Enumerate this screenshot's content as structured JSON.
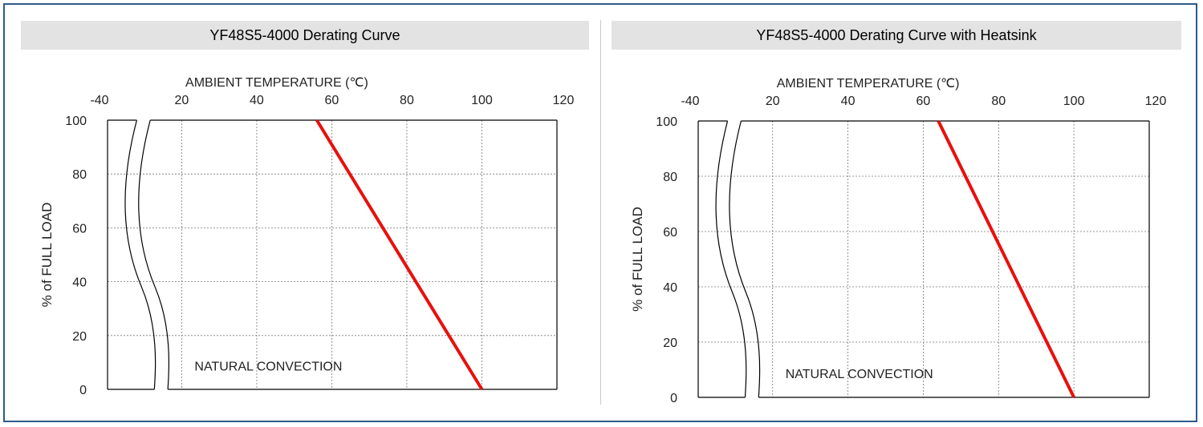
{
  "chart_data": [
    {
      "type": "line",
      "title": "YF48S5-4000 Derating Curve",
      "xlabel": "AMBIENT TEMPERATURE (℃)",
      "ylabel": "% of FULL LOAD",
      "x_ticks": [
        "-40",
        "20",
        "40",
        "60",
        "80",
        "100",
        "120"
      ],
      "y_ticks": [
        "100",
        "80",
        "60",
        "40",
        "20",
        "0"
      ],
      "xlim": [
        0,
        120
      ],
      "ylim": [
        0,
        100
      ],
      "axis_break": "between -40 and 20",
      "grid": true,
      "annotation": "NATURAL CONVECTION",
      "line_color": "#e8100d",
      "series": [
        {
          "x": [
            56,
            100
          ],
          "y": [
            100,
            0
          ]
        }
      ]
    },
    {
      "type": "line",
      "title": "YF48S5-4000 Derating Curve with Heatsink",
      "xlabel": "AMBIENT TEMPERATURE (℃)",
      "ylabel": "% of FULL LOAD",
      "x_ticks": [
        "-40",
        "20",
        "40",
        "60",
        "80",
        "100",
        "120"
      ],
      "y_ticks": [
        "100",
        "80",
        "60",
        "40",
        "20",
        "0"
      ],
      "xlim": [
        0,
        120
      ],
      "ylim": [
        0,
        100
      ],
      "axis_break": "between -40 and 20",
      "grid": true,
      "annotation": "NATURAL CONVECTION",
      "line_color": "#e8100d",
      "series": [
        {
          "x": [
            64,
            100
          ],
          "y": [
            100,
            0
          ]
        }
      ]
    }
  ]
}
